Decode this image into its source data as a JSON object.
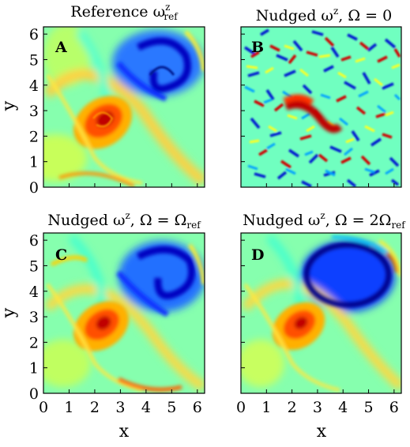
{
  "figure": {
    "panels": [
      {
        "letter": "A",
        "title_main": "Reference ω",
        "title_sup": "z",
        "title_sub": "ref",
        "title_tail": ""
      },
      {
        "letter": "B",
        "title_main": "Nudged ω",
        "title_sup": "z",
        "title_sub": "",
        "title_tail": ", Ω = 0"
      },
      {
        "letter": "C",
        "title_main": "Nudged ω",
        "title_sup": "z",
        "title_sub": "ref",
        "title_tail": ", Ω = Ω"
      },
      {
        "letter": "D",
        "title_main": "Nudged ω",
        "title_sup": "z",
        "title_sub": "ref",
        "title_tail": ", Ω = 2Ω"
      }
    ],
    "xlabel": "x",
    "ylabel": "y",
    "ticks": [
      "0",
      "1",
      "2",
      "3",
      "4",
      "5",
      "6"
    ],
    "colormap": [
      "#00007f",
      "#0000ff",
      "#00c0ff",
      "#6affe0",
      "#ffff00",
      "#ff8000",
      "#ff0000",
      "#800000"
    ],
    "background_field": "#7fff7f"
  }
}
